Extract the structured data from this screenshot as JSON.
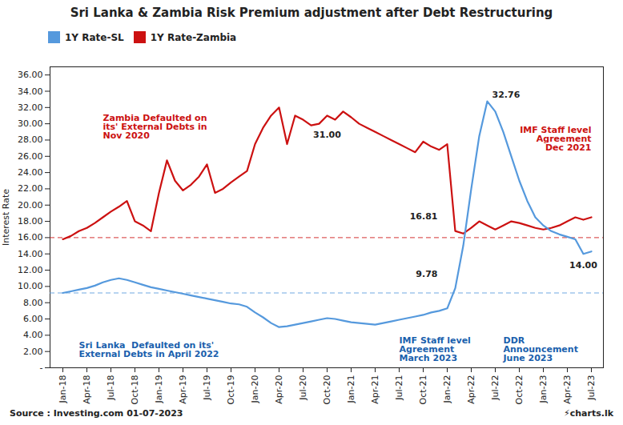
{
  "chart_data": {
    "type": "line",
    "title": "Sri Lanka & Zambia Risk Premium adjustment after Debt Restructuring",
    "ylabel": "Interest Rate",
    "categories": [
      "Jan-18",
      null,
      null,
      "Apr-18",
      null,
      null,
      "Jul-18",
      null,
      null,
      "Oct-18",
      null,
      null,
      "Jan-19",
      null,
      null,
      "Apr-19",
      null,
      null,
      "Jul-19",
      null,
      null,
      "Oct-19",
      null,
      null,
      "Jan-20",
      null,
      null,
      "Apr-20",
      null,
      null,
      "Jul-20",
      null,
      null,
      "Oct-20",
      null,
      null,
      "Jan-21",
      null,
      null,
      "Apr-21",
      null,
      null,
      "Jul-21",
      null,
      null,
      "Oct-21",
      null,
      null,
      "Jan-22",
      null,
      null,
      "Apr-22",
      null,
      null,
      "Jul-22",
      null,
      null,
      "Oct-22",
      null,
      null,
      "Jan-23",
      null,
      null,
      "Apr-23",
      null,
      null,
      "Jul-23"
    ],
    "series": [
      {
        "name": "1Y Rate-SL",
        "color": "#5599dd",
        "values": [
          9.2,
          9.4,
          9.6,
          9.8,
          10.1,
          10.5,
          10.8,
          11.0,
          10.8,
          10.5,
          10.2,
          9.9,
          9.7,
          9.5,
          9.3,
          9.1,
          8.9,
          8.7,
          8.5,
          8.3,
          8.1,
          7.9,
          7.8,
          7.5,
          6.8,
          6.2,
          5.5,
          5.0,
          5.1,
          5.3,
          5.5,
          5.7,
          5.9,
          6.1,
          6.0,
          5.8,
          5.6,
          5.5,
          5.4,
          5.3,
          5.5,
          5.7,
          5.9,
          6.1,
          6.3,
          6.5,
          6.8,
          7.0,
          7.3,
          9.78,
          15.0,
          22.0,
          28.5,
          32.76,
          31.5,
          29.0,
          26.0,
          23.0,
          20.5,
          18.5,
          17.5,
          16.8,
          16.4,
          16.1,
          15.8,
          14.0,
          14.3
        ]
      },
      {
        "name": "1Y Rate-Zambia",
        "color": "#cc1111",
        "values": [
          15.8,
          16.2,
          16.8,
          17.2,
          17.8,
          18.5,
          19.2,
          19.8,
          20.5,
          18.0,
          17.5,
          16.8,
          21.5,
          25.5,
          23.0,
          21.8,
          22.5,
          23.5,
          25.0,
          21.5,
          22.0,
          22.8,
          23.5,
          24.2,
          27.5,
          29.5,
          31.0,
          32.0,
          27.5,
          31.0,
          30.5,
          29.8,
          30.0,
          31.0,
          30.5,
          31.5,
          30.8,
          30.0,
          29.5,
          29.0,
          28.5,
          28.0,
          27.5,
          27.0,
          26.5,
          27.8,
          27.2,
          26.8,
          27.5,
          16.81,
          16.5,
          17.2,
          18.0,
          17.5,
          17.0,
          17.5,
          18.0,
          17.8,
          17.5,
          17.2,
          17.0,
          17.2,
          17.5,
          18.0,
          18.5,
          18.2,
          18.5
        ]
      }
    ],
    "ylim": [
      0,
      37
    ],
    "yticks": [
      {
        "value": 0,
        "label": "-"
      },
      {
        "value": 2,
        "label": "2.00"
      },
      {
        "value": 4,
        "label": "4.00"
      },
      {
        "value": 6,
        "label": "6.00"
      },
      {
        "value": 8,
        "label": "8.00"
      },
      {
        "value": 10,
        "label": "10.00"
      },
      {
        "value": 12,
        "label": "12.00"
      },
      {
        "value": 14,
        "label": "14.00"
      },
      {
        "value": 16,
        "label": "16.00"
      },
      {
        "value": 18,
        "label": "18.00"
      },
      {
        "value": 20,
        "label": "20.00"
      },
      {
        "value": 22,
        "label": "22.00"
      },
      {
        "value": 24,
        "label": "24.00"
      },
      {
        "value": 26,
        "label": "26.00"
      },
      {
        "value": 28,
        "label": "28.00"
      },
      {
        "value": 30,
        "label": "30.00"
      },
      {
        "value": 32,
        "label": "32.00"
      },
      {
        "value": 34,
        "label": "34.00"
      },
      {
        "value": 36,
        "label": "36.00"
      }
    ],
    "grid": false,
    "legend": "top",
    "hlines": [
      {
        "value": 16.0,
        "color": "#cc1111",
        "line_style": "dashed"
      },
      {
        "value": 9.2,
        "color": "#5599dd",
        "line_style": "dashed"
      }
    ],
    "annotations": [
      {
        "text": "Zambia Defaulted on\nits' External Debts in\nNov 2020",
        "color": "#cc1111"
      },
      {
        "text": "Sri Lanka  Defaulted on its'\nExternal Debts in April 2022",
        "color": "#1a5fad"
      },
      {
        "text": "IMF Staff level\nAgreement\nDec 2021",
        "color": "#cc1111"
      },
      {
        "text": "IMF Staff level\nAgreement\nMarch 2023",
        "color": "#1a5fad"
      },
      {
        "text": "DDR\nAnnouncement\nJune 2023",
        "color": "#1a5fad"
      }
    ],
    "point_labels": [
      {
        "text": "31.00",
        "series": "1Y Rate-Zambia",
        "value": 31.0
      },
      {
        "text": "16.81",
        "series": "1Y Rate-Zambia",
        "value": 16.81
      },
      {
        "text": "9.78",
        "series": "1Y Rate-SL",
        "value": 9.78
      },
      {
        "text": "32.76",
        "series": "1Y Rate-SL",
        "value": 32.76
      },
      {
        "text": "14.00",
        "series": "1Y Rate-SL",
        "value": 14.0
      }
    ],
    "source": "Source : Investing.com  01-07-2023",
    "credit": "⚡charts.lk"
  }
}
